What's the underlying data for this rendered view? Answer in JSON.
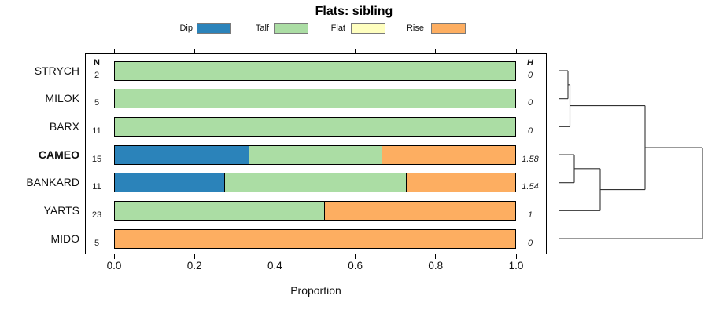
{
  "title": "Flats: sibling",
  "legend": {
    "items": [
      {
        "label": "Dip",
        "color": "#2B83BA"
      },
      {
        "label": "Talf",
        "color": "#ABDDA4"
      },
      {
        "label": "Flat",
        "color": "#FFFFBF"
      },
      {
        "label": "Rise",
        "color": "#FDAE61"
      }
    ]
  },
  "columns": {
    "n_header": "N",
    "h_header": "H"
  },
  "axis": {
    "xlabel": "Proportion",
    "tick_labels": [
      "0.0",
      "0.2",
      "0.4",
      "0.6",
      "0.8",
      "1.0"
    ],
    "tick_values": [
      0.0,
      0.2,
      0.4,
      0.6,
      0.8,
      1.0
    ]
  },
  "chart_data": {
    "type": "bar",
    "stacked": true,
    "orientation": "horizontal",
    "title": "Flats: sibling",
    "xlabel": "Proportion",
    "xlim": [
      0,
      1
    ],
    "legend_position": "top",
    "categories": [
      "STRYCH",
      "MILOK",
      "BARX",
      "CAMEO",
      "BANKARD",
      "YARTS",
      "MIDO"
    ],
    "bold_categories": [
      "CAMEO"
    ],
    "n_values": [
      2,
      5,
      11,
      15,
      11,
      23,
      5
    ],
    "h_values": [
      "0",
      "0",
      "0",
      "1.58",
      "1.54",
      "1",
      "0"
    ],
    "series": [
      {
        "name": "Dip",
        "color": "#2B83BA",
        "values": [
          0,
          0,
          0,
          0.3333,
          0.2727,
          0,
          0
        ]
      },
      {
        "name": "Talf",
        "color": "#ABDDA4",
        "values": [
          1,
          1,
          1,
          0.3334,
          0.4546,
          0.5217,
          0
        ]
      },
      {
        "name": "Flat",
        "color": "#FFFFBF",
        "values": [
          0,
          0,
          0,
          0,
          0,
          0,
          0
        ]
      },
      {
        "name": "Rise",
        "color": "#FDAE61",
        "values": [
          0,
          0,
          0,
          0.3333,
          0.2727,
          0.4783,
          1
        ]
      }
    ],
    "dendrogram": {
      "side": "right",
      "leaf_order": [
        "STRYCH",
        "MILOK",
        "BARX",
        "CAMEO",
        "BANKARD",
        "YARTS",
        "MIDO"
      ],
      "merges": [
        {
          "left": "L0",
          "right": "L1",
          "height": 0.0604
        },
        {
          "left": "M0",
          "right": "L2",
          "height": 0.0742
        },
        {
          "left": "L3",
          "right": "L4",
          "height": 0.1044
        },
        {
          "left": "M2",
          "right": "L5",
          "height": 0.2857
        },
        {
          "left": "M1",
          "right": "M3",
          "height": 0.5989
        },
        {
          "left": "M4",
          "right": "L6",
          "height": 1.0
        }
      ]
    }
  }
}
